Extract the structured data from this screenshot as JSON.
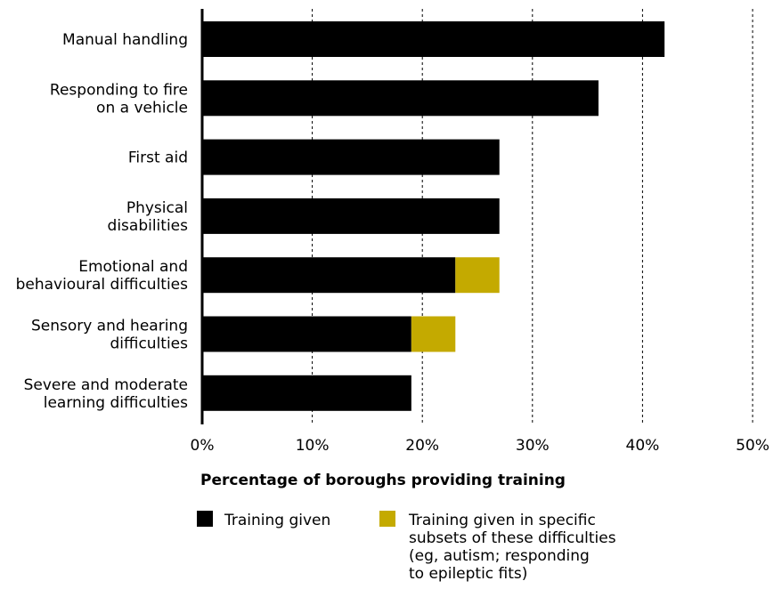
{
  "chart_data": {
    "type": "bar",
    "orientation": "horizontal",
    "stacked": true,
    "categories": [
      "Manual handling",
      "Responding to fire on a vehicle",
      "First aid",
      "Physical disabilities",
      "Emotional and behavioural difficulties",
      "Sensory and hearing difficulties",
      "Severe and moderate learning difficulties"
    ],
    "category_lines": [
      [
        "Manual handling"
      ],
      [
        "Responding to fire",
        "on a vehicle"
      ],
      [
        "First aid"
      ],
      [
        "Physical",
        "disabilities"
      ],
      [
        "Emotional and",
        "behavioural difficulties"
      ],
      [
        "Sensory and hearing",
        "difficulties"
      ],
      [
        "Severe and moderate",
        "learning difficulties"
      ]
    ],
    "series": [
      {
        "name": "Training given",
        "color": "#000000",
        "values": [
          42,
          36,
          27,
          27,
          23,
          19,
          19
        ]
      },
      {
        "name": "Training given in specific subsets of these difficulties (eg, autism; responding to epileptic fits)",
        "name_lines": [
          "Training given in specific",
          "subsets of these difficulties",
          "(eg, autism; responding",
          "to epileptic fits)"
        ],
        "color": "#C4AA00",
        "values": [
          0,
          0,
          0,
          0,
          4,
          4,
          0
        ]
      }
    ],
    "xlim": [
      0,
      50
    ],
    "xticks": [
      0,
      10,
      20,
      30,
      40,
      50
    ],
    "xtick_labels": [
      "0%",
      "10%",
      "20%",
      "30%",
      "40%",
      "50%"
    ],
    "xlabel": "Percentage of boroughs providing training",
    "ylabel": "",
    "title": "",
    "grid": "vertical dashed",
    "legend_position": "bottom"
  }
}
